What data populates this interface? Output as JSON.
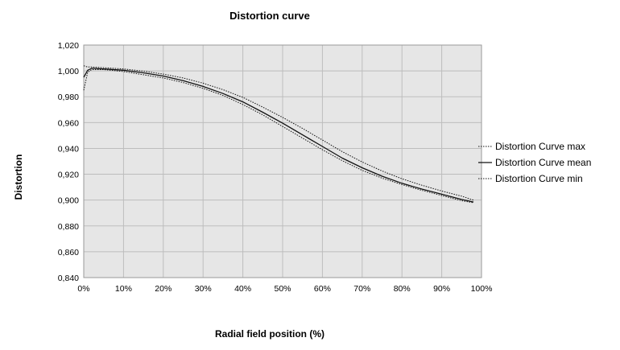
{
  "chart_data": {
    "type": "line",
    "title": "Distortion curve",
    "xlabel": "Radial field position (%)",
    "ylabel": "Distortion",
    "xlim": [
      0,
      100
    ],
    "ylim": [
      0.84,
      1.02
    ],
    "x_ticks": [
      "0%",
      "10%",
      "20%",
      "30%",
      "40%",
      "50%",
      "60%",
      "70%",
      "80%",
      "90%",
      "100%"
    ],
    "y_ticks": [
      "1,020",
      "1,000",
      "0,980",
      "0,960",
      "0,940",
      "0,920",
      "0,900",
      "0,880",
      "0,860",
      "0,840"
    ],
    "grid": true,
    "legend_position": "right",
    "plot_background": "#e6e6e6",
    "grid_color": "#bdbdbd",
    "series": [
      {
        "name": "Distortion Curve max",
        "style": "dotted",
        "x": [
          0,
          1,
          2,
          5,
          10,
          15,
          20,
          25,
          30,
          35,
          40,
          45,
          50,
          55,
          60,
          65,
          70,
          75,
          80,
          85,
          90,
          95,
          98
        ],
        "y": [
          1.004,
          1.003,
          1.003,
          1.0025,
          1.0015,
          0.9998,
          0.9975,
          0.9945,
          0.9905,
          0.9855,
          0.9795,
          0.972,
          0.964,
          0.9555,
          0.9465,
          0.9375,
          0.9295,
          0.9225,
          0.9165,
          0.9115,
          0.907,
          0.903,
          0.9
        ]
      },
      {
        "name": "Distortion Curve mean",
        "style": "solid",
        "x": [
          0,
          1,
          2,
          5,
          10,
          15,
          20,
          25,
          30,
          35,
          40,
          45,
          50,
          55,
          60,
          65,
          70,
          75,
          80,
          85,
          90,
          95,
          98
        ],
        "y": [
          0.995,
          1.0005,
          1.002,
          1.0015,
          1.0005,
          0.9985,
          0.996,
          0.9925,
          0.988,
          0.9825,
          0.976,
          0.968,
          0.9595,
          0.9505,
          0.9415,
          0.9325,
          0.925,
          0.9185,
          0.913,
          0.9085,
          0.9045,
          0.9005,
          0.8985
        ]
      },
      {
        "name": "Distortion Curve min",
        "style": "dotted",
        "x": [
          0,
          1,
          2,
          5,
          10,
          15,
          20,
          25,
          30,
          35,
          40,
          45,
          50,
          55,
          60,
          65,
          70,
          75,
          80,
          85,
          90,
          95,
          98
        ],
        "y": [
          0.985,
          0.999,
          1.001,
          1.001,
          0.9995,
          0.997,
          0.9945,
          0.991,
          0.9865,
          0.981,
          0.974,
          0.966,
          0.957,
          0.948,
          0.939,
          0.9305,
          0.923,
          0.917,
          0.912,
          0.9075,
          0.9035,
          0.8995,
          0.898
        ]
      }
    ]
  }
}
